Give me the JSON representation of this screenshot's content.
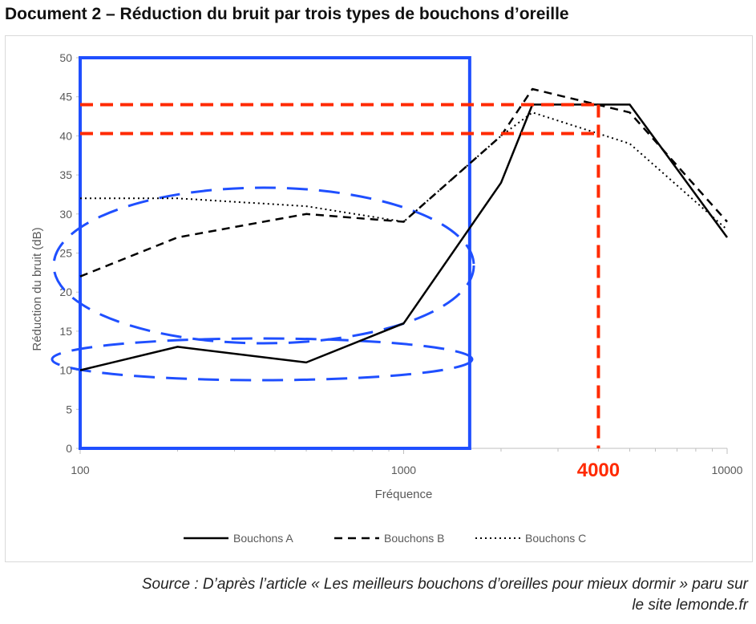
{
  "document": {
    "title": "Document 2 – Réduction du bruit par trois types de bouchons d’oreille",
    "source_line1": "Source : D’après l’article « Les meilleurs bouchons d’oreilles pour mieux dormir » paru sur",
    "source_line2": "le site lemonde.fr"
  },
  "chart_data": {
    "type": "line",
    "title": "",
    "xlabel": "Fréquence",
    "ylabel": "Réduction du bruit (dB)",
    "x_scale": "log",
    "xlim": [
      100,
      10000
    ],
    "ylim": [
      0,
      50
    ],
    "x_ticks": [
      100,
      1000,
      10000
    ],
    "x_tick_labels": [
      "100",
      "1000",
      "10000"
    ],
    "y_ticks": [
      0,
      5,
      10,
      15,
      20,
      25,
      30,
      35,
      40,
      45,
      50
    ],
    "grid": false,
    "legend_position": "bottom",
    "series": [
      {
        "name": "Bouchons A",
        "style": "solid",
        "x": [
          100,
          200,
          500,
          1000,
          2000,
          2500,
          5000,
          10000
        ],
        "y": [
          10,
          13,
          11,
          16,
          34,
          44,
          44,
          27
        ]
      },
      {
        "name": "Bouchons B",
        "style": "dashed",
        "x": [
          100,
          200,
          500,
          1000,
          2000,
          2500,
          5000,
          10000
        ],
        "y": [
          22,
          27,
          30,
          29,
          40,
          46,
          43,
          29
        ]
      },
      {
        "name": "Bouchons C",
        "style": "dotted",
        "x": [
          100,
          200,
          500,
          1000,
          2000,
          2500,
          5000,
          10000
        ],
        "y": [
          32,
          32,
          31,
          29,
          40,
          43,
          39,
          28
        ]
      }
    ],
    "annotations": {
      "highlight_x_label": "4000",
      "highlight_x_value": 4000,
      "highlight_y_levels": [
        44,
        40.3
      ],
      "highlight_color": "#ff2a00",
      "box_color": "#1f4fff",
      "box_x_range": [
        100,
        1600
      ],
      "box_y_range": [
        0,
        50
      ]
    }
  }
}
